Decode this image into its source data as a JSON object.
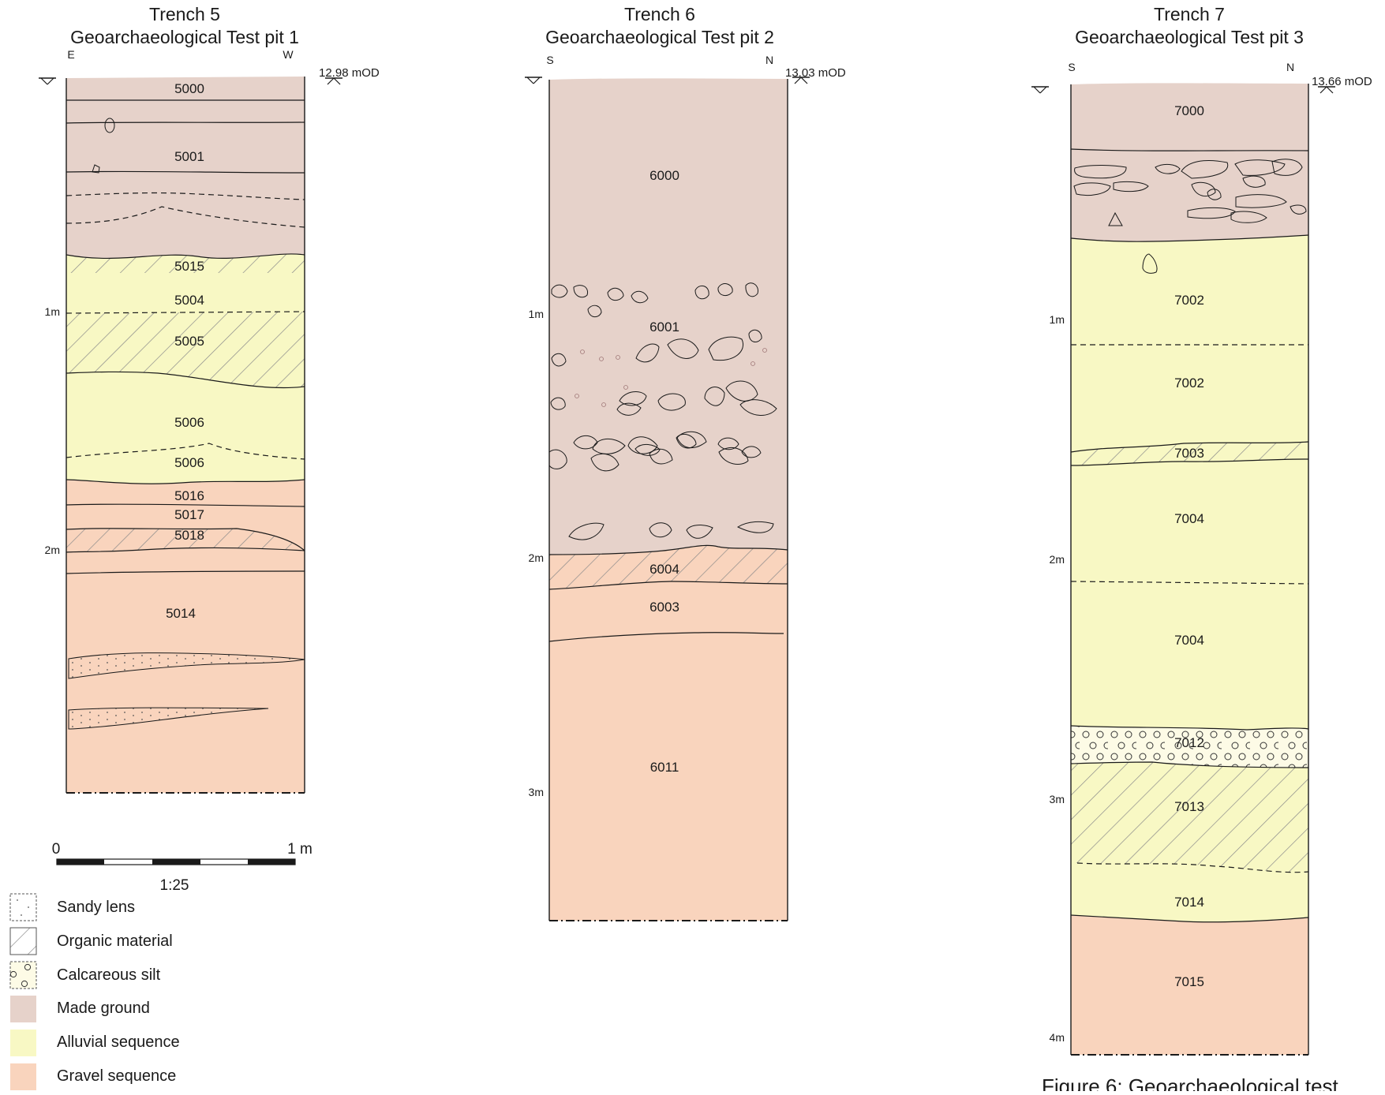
{
  "figure_caption": "Figure 6: Geoarchaeological test",
  "columns": [
    {
      "id": "trench5",
      "trench": "Trench 5",
      "test_pit": "Geoarchaeological Test pit 1",
      "orient_left": "E",
      "orient_right": "W",
      "datum": "12.98 mOD",
      "depth_labels": [
        "1m",
        "2m"
      ],
      "contexts": [
        "5000",
        "5001",
        "5015",
        "5004",
        "5005",
        "5006",
        "5006",
        "5016",
        "5017",
        "5018",
        "5014"
      ]
    },
    {
      "id": "trench6",
      "trench": "Trench 6",
      "test_pit": "Geoarchaeological Test pit 2",
      "orient_left": "S",
      "orient_right": "N",
      "datum": "13.03 mOD",
      "depth_labels": [
        "1m",
        "2m",
        "3m"
      ],
      "contexts": [
        "6000",
        "6001",
        "6004",
        "6003",
        "6011"
      ]
    },
    {
      "id": "trench7",
      "trench": "Trench 7",
      "test_pit": "Geoarchaeological Test pit  3",
      "orient_left": "S",
      "orient_right": "N",
      "datum": "13.66 mOD",
      "depth_labels": [
        "1m",
        "2m",
        "3m",
        "4m"
      ],
      "contexts": [
        "7000",
        "7002",
        "7002",
        "7003",
        "7004",
        "7004",
        "7012",
        "7013",
        "7014",
        "7015"
      ]
    }
  ],
  "scale_bar": {
    "start_label": "0",
    "end_label": "1 m",
    "ratio": "1:25"
  },
  "legend": [
    {
      "label": "Sandy lens",
      "fill": "#ffffff",
      "pattern": "dots"
    },
    {
      "label": "Organic material",
      "fill": "#ffffff",
      "pattern": "hatch"
    },
    {
      "label": "Calcareous silt",
      "fill": "#fdfbe6",
      "pattern": "circles"
    },
    {
      "label": "Made ground",
      "fill": "#e6d2ca",
      "pattern": "none"
    },
    {
      "label": "Alluvial sequence",
      "fill": "#f8f8c4",
      "pattern": "none"
    },
    {
      "label": "Gravel sequence",
      "fill": "#f9d4bd",
      "pattern": "none"
    }
  ],
  "colors": {
    "made_ground": "#e6d2ca",
    "alluvial": "#f8f8c4",
    "gravel": "#f9d4bd",
    "line": "#1a1a1a",
    "hatch": "#8a8a8a"
  }
}
